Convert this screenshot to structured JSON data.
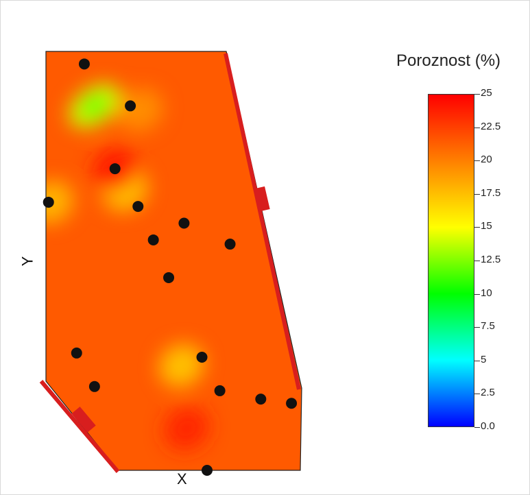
{
  "chart_data": {
    "type": "heatmap",
    "title": "Poroznost (%)",
    "xlabel": "X",
    "ylabel": "Y",
    "colorbar": {
      "ticks": [
        "25",
        "22.5",
        "20",
        "17.5",
        "15",
        "12.5",
        "10",
        "7.5",
        "5",
        "2.5",
        "0.0"
      ],
      "range": [
        0,
        25
      ],
      "colors": [
        "#0000ff",
        "#00ffff",
        "#00ff00",
        "#ffff00",
        "#ff8000",
        "#ff0000"
      ]
    },
    "background_value": 21.5,
    "anomalies": [
      {
        "x": 0.19,
        "y": 0.87,
        "value": 14
      },
      {
        "x": 0.31,
        "y": 0.67,
        "value": 17.5
      },
      {
        "x": 0.02,
        "y": 0.64,
        "value": 18
      },
      {
        "x": 0.53,
        "y": 0.25,
        "value": 17.5
      },
      {
        "x": 0.37,
        "y": 0.86,
        "value": 19.5
      },
      {
        "x": 0.55,
        "y": 0.1,
        "value": 23.5
      },
      {
        "x": 0.27,
        "y": 0.72,
        "value": 24
      }
    ],
    "wells": [
      {
        "x": 0.15,
        "y": 0.97
      },
      {
        "x": 0.33,
        "y": 0.87
      },
      {
        "x": 0.27,
        "y": 0.72
      },
      {
        "x": 0.01,
        "y": 0.64
      },
      {
        "x": 0.36,
        "y": 0.63
      },
      {
        "x": 0.54,
        "y": 0.59
      },
      {
        "x": 0.42,
        "y": 0.55
      },
      {
        "x": 0.72,
        "y": 0.54
      },
      {
        "x": 0.48,
        "y": 0.46
      },
      {
        "x": 0.12,
        "y": 0.28
      },
      {
        "x": 0.61,
        "y": 0.27
      },
      {
        "x": 0.19,
        "y": 0.2
      },
      {
        "x": 0.68,
        "y": 0.19
      },
      {
        "x": 0.84,
        "y": 0.17
      },
      {
        "x": 0.96,
        "y": 0.16
      },
      {
        "x": 0.63,
        "y": 0.0
      }
    ]
  },
  "colors": {
    "fault": "#d81e1e",
    "well": "#111111"
  }
}
